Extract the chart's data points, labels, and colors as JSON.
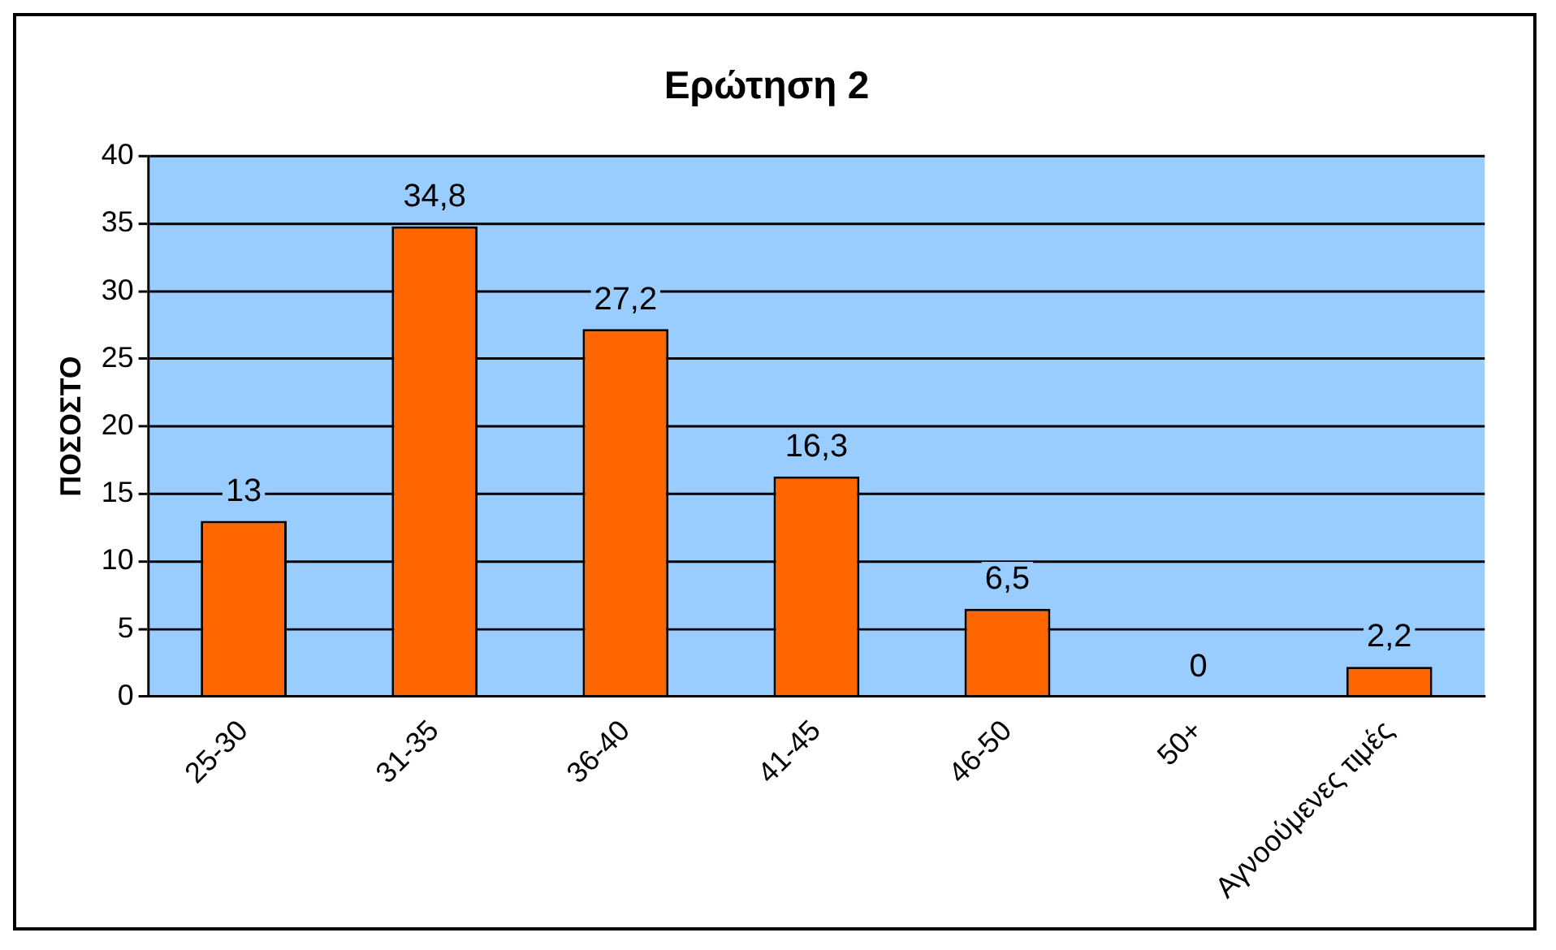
{
  "chart_data": {
    "type": "bar",
    "title": "Ερώτηση 2",
    "ylabel": "ΠΟΣΟΣΤΟ",
    "categories": [
      "25-30",
      "31-35",
      "36-40",
      "41-45",
      "46-50",
      "50+",
      "Αγνοούμενες τιμές"
    ],
    "values": [
      13,
      34.8,
      27.2,
      16.3,
      6.5,
      0,
      2.2
    ],
    "value_labels": [
      "13",
      "34,8",
      "27,2",
      "16,3",
      "6,5",
      "0",
      "2,2"
    ],
    "color": "#ff6600",
    "ylim": [
      0,
      40
    ],
    "yticks": [
      0,
      5,
      10,
      15,
      20,
      25,
      30,
      35,
      40
    ],
    "grid": "y",
    "legend": false
  }
}
